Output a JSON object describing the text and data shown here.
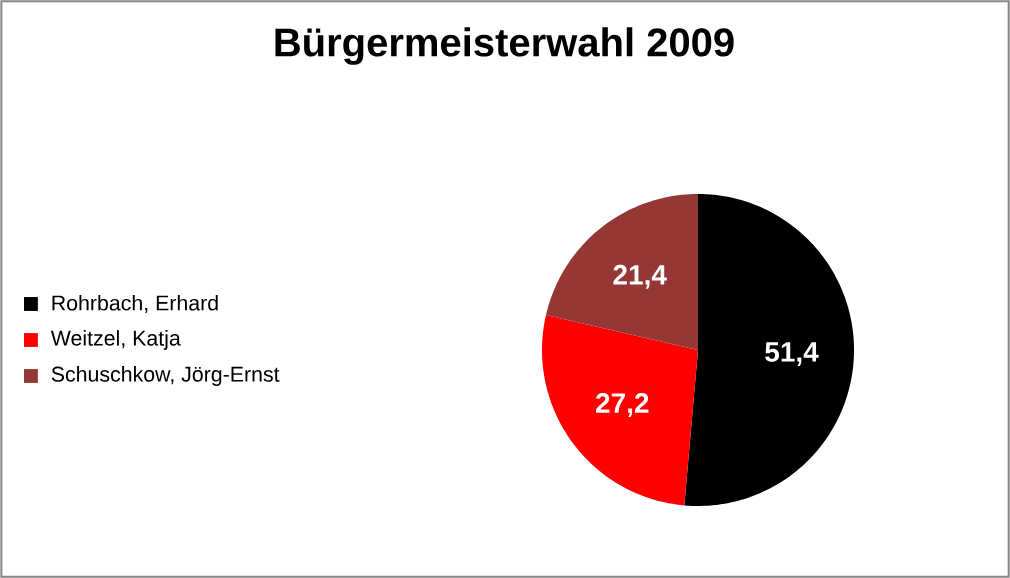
{
  "chart_data": {
    "type": "pie",
    "title": "Bürgermeisterwahl 2009",
    "categories": [
      "Rohrbach, Erhard",
      "Weitzel, Katja",
      "Schuschkow, Jörg-Ernst"
    ],
    "values": [
      51.4,
      27.2,
      21.4
    ],
    "colors": [
      "#000000",
      "#ff0000",
      "#953735"
    ],
    "value_labels": [
      "51,4",
      "27,2",
      "21,4"
    ],
    "legend": "left"
  }
}
